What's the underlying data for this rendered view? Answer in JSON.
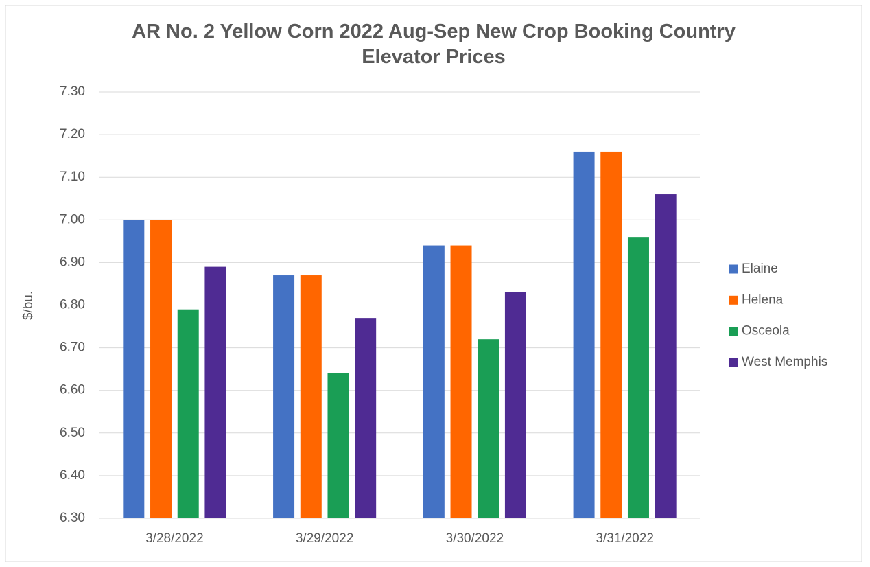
{
  "chart_data": {
    "type": "bar",
    "title": "AR No. 2 Yellow Corn 2022 Aug-Sep New Crop Booking Country Elevator Prices",
    "y_label": "$/bu.",
    "categories": [
      "3/28/2022",
      "3/29/2022",
      "3/30/2022",
      "3/31/2022"
    ],
    "series": [
      {
        "name": "Elaine",
        "color": "#4472c4",
        "values": [
          7.0,
          6.87,
          6.94,
          7.16
        ]
      },
      {
        "name": "Helena",
        "color": "#ff6600",
        "values": [
          7.0,
          6.87,
          6.94,
          7.16
        ]
      },
      {
        "name": "Osceola",
        "color": "#1a9e55",
        "values": [
          6.79,
          6.64,
          6.72,
          6.96
        ]
      },
      {
        "name": "West Memphis",
        "color": "#4f2b93",
        "values": [
          6.89,
          6.77,
          6.83,
          7.06
        ]
      }
    ],
    "ylim": [
      6.3,
      7.3
    ],
    "yticks": [
      {
        "value": 6.3,
        "label": "6.30"
      },
      {
        "value": 6.4,
        "label": "6.40"
      },
      {
        "value": 6.5,
        "label": "6.50"
      },
      {
        "value": 6.6,
        "label": "6.60"
      },
      {
        "value": 6.7,
        "label": "6.70"
      },
      {
        "value": 6.8,
        "label": "6.80"
      },
      {
        "value": 6.9,
        "label": "6.90"
      },
      {
        "value": 7.0,
        "label": "7.00"
      },
      {
        "value": 7.1,
        "label": "7.10"
      },
      {
        "value": 7.2,
        "label": "7.20"
      },
      {
        "value": 7.3,
        "label": "7.30"
      }
    ],
    "grid": true,
    "legend": "right"
  }
}
